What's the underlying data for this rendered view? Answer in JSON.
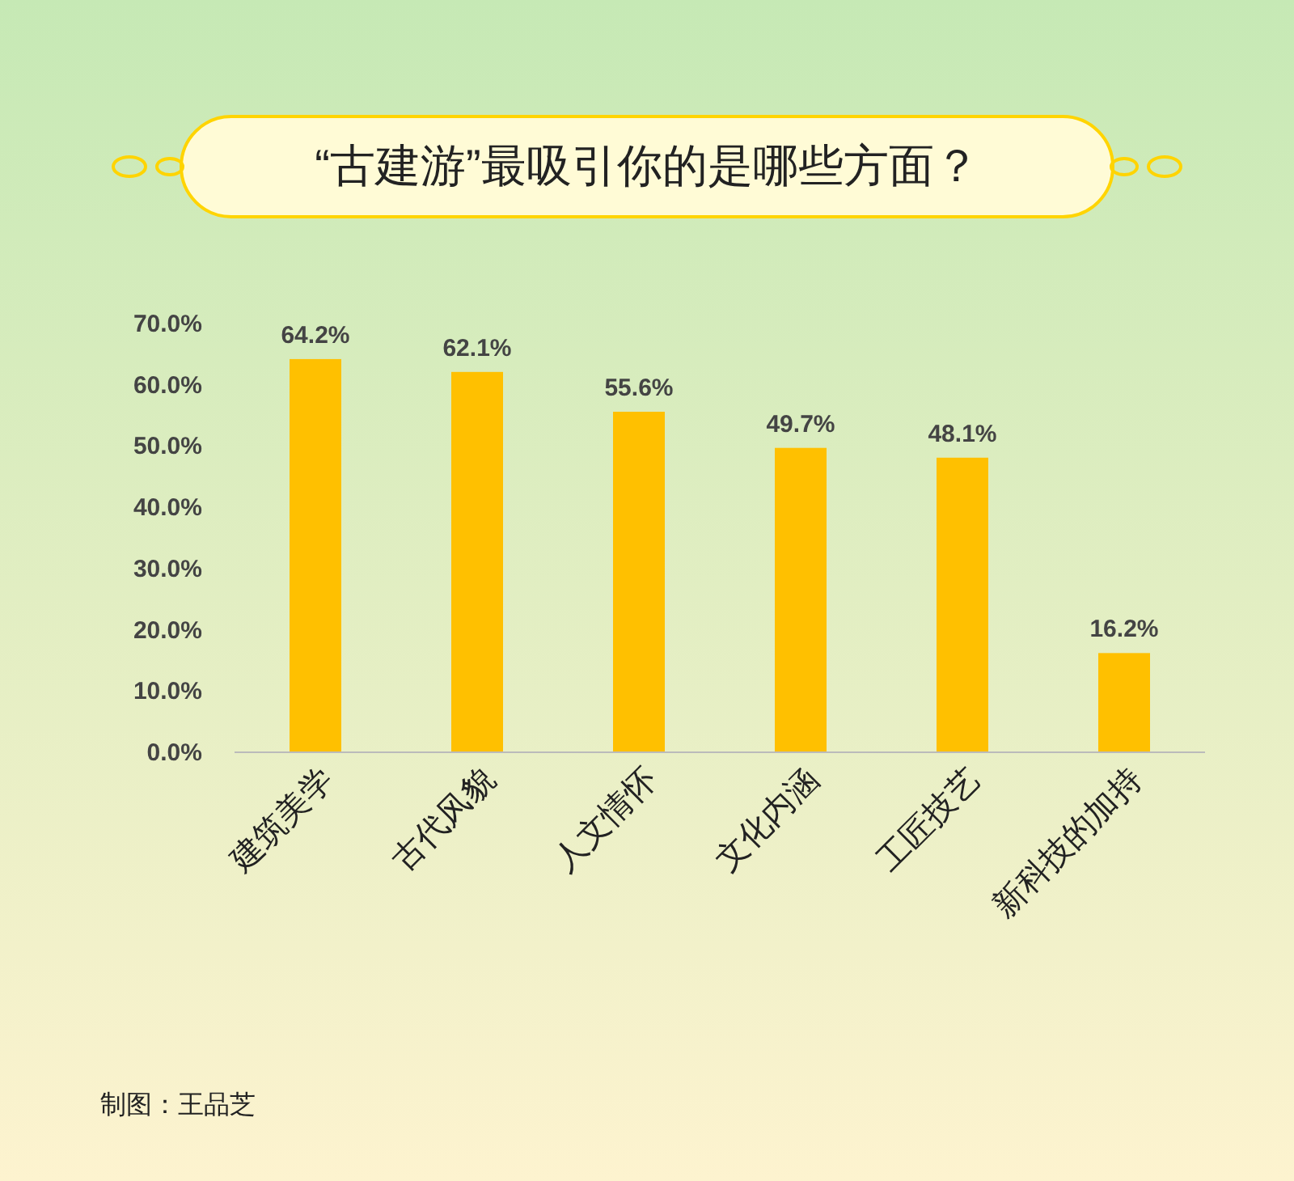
{
  "chart_data": {
    "type": "bar",
    "title": "“古建游”最吸引你的是哪些方面？",
    "categories": [
      "建筑美学",
      "古代风貌",
      "人文情怀",
      "文化内涵",
      "工匠技艺",
      "新科技的加持"
    ],
    "values": [
      64.2,
      62.1,
      55.6,
      49.7,
      48.1,
      16.2
    ],
    "value_labels": [
      "64.2%",
      "62.1%",
      "55.6%",
      "49.7%",
      "48.1%",
      "16.2%"
    ],
    "color": "#ffc000",
    "ylim": [
      0,
      70
    ],
    "yticks": [
      {
        "value": 0,
        "label": "0.0%"
      },
      {
        "value": 10,
        "label": "10.0%"
      },
      {
        "value": 20,
        "label": "20.0%"
      },
      {
        "value": 30,
        "label": "30.0%"
      },
      {
        "value": 40,
        "label": "40.0%"
      },
      {
        "value": 50,
        "label": "50.0%"
      },
      {
        "value": 60,
        "label": "60.0%"
      },
      {
        "value": 70,
        "label": "70.0%"
      }
    ],
    "grid": false,
    "annotations": [
      "制图：王品芝"
    ]
  }
}
